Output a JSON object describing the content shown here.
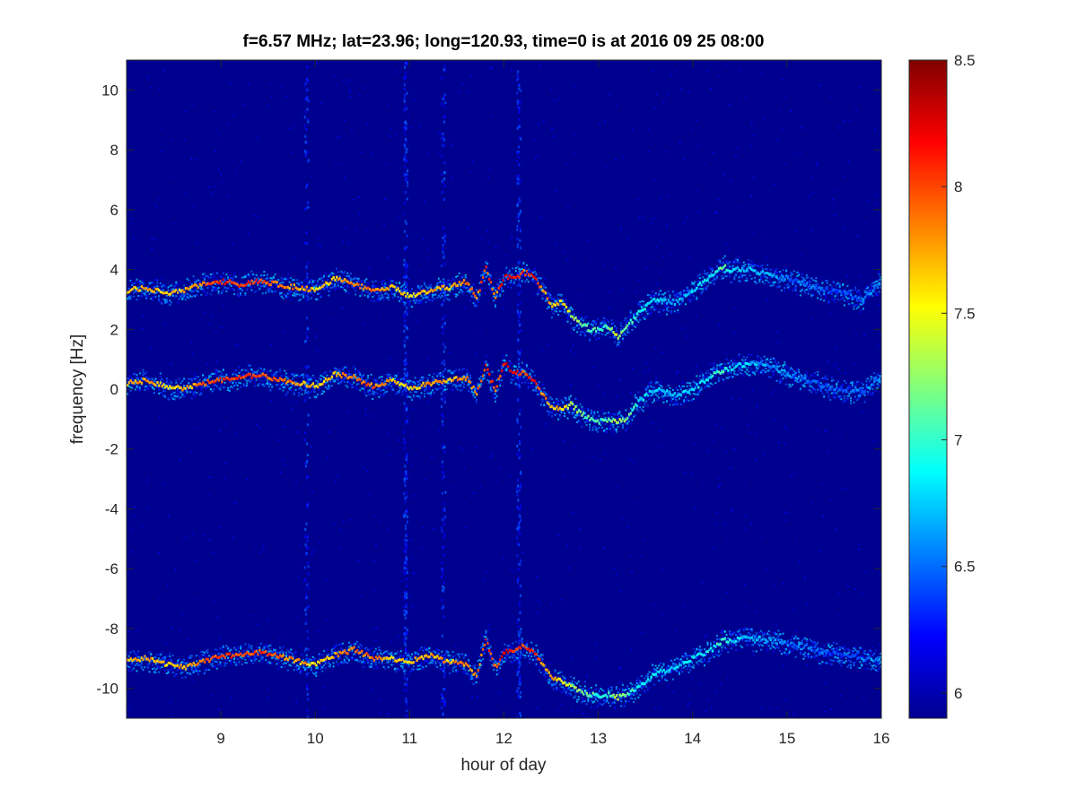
{
  "chart_data": {
    "type": "heatmap",
    "title": "f=6.57 MHz;  lat=23.96; long=120.93, time=0 is at 2016 09 25 08:00",
    "xlabel": "hour of day",
    "ylabel": "frequency [Hz]",
    "xlim": [
      8,
      16
    ],
    "ylim": [
      -11,
      11
    ],
    "xticks": [
      9,
      10,
      11,
      12,
      13,
      14,
      15,
      16
    ],
    "yticks": [
      10,
      8,
      6,
      4,
      2,
      0,
      -2,
      -4,
      -6,
      -8,
      -10
    ],
    "colorbar": {
      "range": [
        5.9,
        8.5
      ],
      "ticks": [
        8.5,
        8,
        7.5,
        7,
        6.5,
        6
      ],
      "colormap": "jet"
    },
    "background_value": 5.95,
    "noise_columns": [
      {
        "x": 9.9,
        "weight": 0.5
      },
      {
        "x": 10.95,
        "weight": 1.0
      },
      {
        "x": 11.35,
        "weight": 0.6
      },
      {
        "x": 12.15,
        "weight": 0.8
      }
    ],
    "series": [
      {
        "x": [
          8.0,
          8.2,
          8.4,
          8.6,
          8.8,
          9.0,
          9.2,
          9.4,
          9.6,
          9.8,
          10.0,
          10.2,
          10.4,
          10.6,
          10.8,
          11.0,
          11.2,
          11.4,
          11.6,
          11.7,
          11.8,
          11.85,
          11.9,
          12.0,
          12.1,
          12.2,
          12.3,
          12.4,
          12.5,
          12.6,
          12.7,
          12.8,
          12.9,
          13.0,
          13.1,
          13.2,
          13.3,
          13.4,
          13.5,
          13.6,
          13.8,
          14.0,
          14.2,
          14.3,
          14.4,
          14.6,
          14.8,
          15.0,
          15.2,
          15.4,
          15.6,
          15.8,
          16.0
        ],
        "values": [
          3.3,
          3.4,
          3.2,
          3.3,
          3.5,
          3.6,
          3.5,
          3.6,
          3.5,
          3.4,
          3.3,
          3.7,
          3.5,
          3.3,
          3.4,
          3.1,
          3.3,
          3.4,
          3.6,
          3.0,
          4.1,
          3.5,
          3.1,
          3.8,
          3.7,
          3.9,
          3.8,
          3.3,
          2.8,
          2.9,
          2.5,
          2.2,
          2.0,
          2.0,
          2.1,
          1.7,
          2.1,
          2.5,
          2.8,
          3.0,
          2.9,
          3.3,
          3.8,
          4.1,
          4.0,
          4.0,
          3.8,
          3.7,
          3.5,
          3.3,
          3.2,
          3.0,
          3.6
        ],
        "intensity": [
          7.7,
          7.8,
          7.6,
          7.7,
          7.9,
          8.1,
          8.0,
          8.0,
          7.9,
          7.8,
          7.6,
          7.7,
          7.9,
          7.9,
          7.7,
          7.6,
          7.8,
          7.7,
          7.9,
          7.8,
          8.1,
          8.0,
          7.8,
          8.3,
          8.1,
          8.0,
          8.2,
          7.8,
          7.7,
          7.6,
          7.4,
          7.2,
          7.1,
          7.0,
          7.1,
          7.4,
          7.1,
          6.9,
          6.8,
          6.8,
          6.7,
          6.8,
          6.9,
          7.1,
          6.8,
          6.7,
          6.6,
          6.5,
          6.5,
          6.4,
          6.4,
          6.5,
          6.6
        ]
      },
      {
        "x": [
          8.0,
          8.2,
          8.4,
          8.6,
          8.8,
          9.0,
          9.2,
          9.4,
          9.6,
          9.8,
          10.0,
          10.2,
          10.4,
          10.6,
          10.8,
          11.0,
          11.2,
          11.4,
          11.6,
          11.7,
          11.8,
          11.85,
          11.9,
          12.0,
          12.1,
          12.2,
          12.3,
          12.4,
          12.5,
          12.6,
          12.7,
          12.8,
          12.9,
          13.0,
          13.1,
          13.2,
          13.3,
          13.4,
          13.5,
          13.6,
          13.8,
          14.0,
          14.2,
          14.3,
          14.4,
          14.6,
          14.8,
          15.0,
          15.2,
          15.4,
          15.6,
          15.8,
          16.0
        ],
        "values": [
          0.2,
          0.3,
          0.1,
          0.0,
          0.2,
          0.3,
          0.4,
          0.5,
          0.3,
          0.2,
          0.1,
          0.5,
          0.4,
          0.1,
          0.3,
          0.0,
          0.2,
          0.3,
          0.4,
          -0.2,
          0.8,
          0.3,
          0.0,
          0.9,
          0.5,
          0.6,
          0.3,
          -0.2,
          -0.6,
          -0.7,
          -0.5,
          -0.8,
          -1.0,
          -1.1,
          -1.0,
          -1.1,
          -1.0,
          -0.5,
          -0.2,
          0.0,
          -0.2,
          0.0,
          0.5,
          0.6,
          0.7,
          0.9,
          0.8,
          0.5,
          0.3,
          0.1,
          0.0,
          -0.1,
          0.5
        ],
        "intensity": [
          7.7,
          7.8,
          7.6,
          7.7,
          7.9,
          8.1,
          8.0,
          8.0,
          7.9,
          7.8,
          7.6,
          7.7,
          7.9,
          7.9,
          7.7,
          7.6,
          7.8,
          7.7,
          7.9,
          7.8,
          8.1,
          8.0,
          7.8,
          8.3,
          8.1,
          8.0,
          8.2,
          7.8,
          7.7,
          7.6,
          7.4,
          7.2,
          7.1,
          7.0,
          7.1,
          7.4,
          7.1,
          6.9,
          6.8,
          6.8,
          6.7,
          6.8,
          6.9,
          7.1,
          6.8,
          6.7,
          6.6,
          6.5,
          6.5,
          6.4,
          6.4,
          6.5,
          6.6
        ]
      },
      {
        "x": [
          8.0,
          8.2,
          8.4,
          8.6,
          8.8,
          9.0,
          9.2,
          9.4,
          9.6,
          9.8,
          10.0,
          10.2,
          10.4,
          10.6,
          10.8,
          11.0,
          11.2,
          11.4,
          11.6,
          11.7,
          11.8,
          11.85,
          11.9,
          12.0,
          12.1,
          12.2,
          12.3,
          12.4,
          12.5,
          12.6,
          12.7,
          12.8,
          12.9,
          13.0,
          13.1,
          13.2,
          13.3,
          13.4,
          13.5,
          13.6,
          13.8,
          14.0,
          14.2,
          14.3,
          14.4,
          14.6,
          14.8,
          15.0,
          15.2,
          15.4,
          15.6,
          15.8,
          16.0
        ],
        "values": [
          -9.1,
          -9.0,
          -9.2,
          -9.3,
          -9.1,
          -8.9,
          -8.9,
          -8.8,
          -8.9,
          -9.1,
          -9.2,
          -8.9,
          -8.7,
          -9.0,
          -9.0,
          -9.1,
          -8.9,
          -9.1,
          -9.2,
          -9.6,
          -8.3,
          -8.9,
          -9.3,
          -8.8,
          -8.7,
          -8.6,
          -8.8,
          -9.2,
          -9.6,
          -9.8,
          -9.9,
          -10.1,
          -10.2,
          -10.3,
          -10.2,
          -10.3,
          -10.2,
          -10.0,
          -9.8,
          -9.5,
          -9.3,
          -9.0,
          -8.7,
          -8.4,
          -8.4,
          -8.3,
          -8.4,
          -8.5,
          -8.6,
          -8.8,
          -8.9,
          -9.0,
          -9.1
        ],
        "intensity": [
          7.7,
          7.8,
          7.6,
          7.7,
          7.9,
          8.1,
          8.0,
          8.0,
          7.9,
          7.8,
          7.6,
          7.7,
          7.9,
          7.9,
          7.7,
          7.6,
          7.8,
          7.7,
          7.9,
          7.8,
          8.1,
          8.0,
          7.8,
          8.3,
          8.1,
          8.0,
          8.2,
          7.8,
          7.7,
          7.6,
          7.4,
          7.2,
          7.1,
          7.0,
          7.1,
          7.4,
          7.1,
          6.9,
          6.8,
          6.8,
          6.7,
          6.8,
          6.9,
          7.1,
          6.8,
          6.7,
          6.6,
          6.5,
          6.5,
          6.4,
          6.4,
          6.5,
          6.6
        ]
      }
    ]
  }
}
